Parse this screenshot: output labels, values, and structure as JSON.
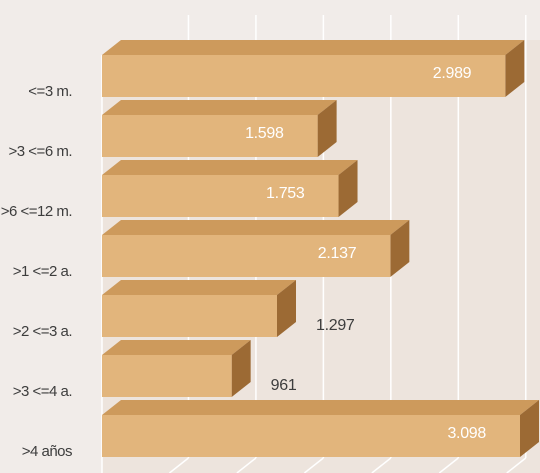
{
  "chart_data": {
    "type": "bar",
    "orientation": "horizontal",
    "style": "3d",
    "categories": [
      "<=3 m.",
      ">3 <=6 m.",
      ">6 <=12 m.",
      ">1 <=2 a.",
      ">2 <=3 a.",
      ">3 <=4 a.",
      ">4 años"
    ],
    "values": [
      2989,
      1598,
      1753,
      2137,
      1297,
      961,
      3098
    ],
    "value_labels": [
      "2.989",
      "1.598",
      "1.753",
      "2.137",
      "1.297",
      "961",
      "3.098"
    ],
    "xlim": [
      0,
      3100
    ],
    "grid": true,
    "colors": {
      "bar_front": "#e2b57c",
      "bar_top": "#cd9a5c",
      "bar_side": "#9c6a34",
      "grid": "#ffffff",
      "background": "#f1ece9",
      "wall": "#ffffff",
      "label_dark": "#3d3d3d",
      "label_light": "#ffffff"
    }
  }
}
